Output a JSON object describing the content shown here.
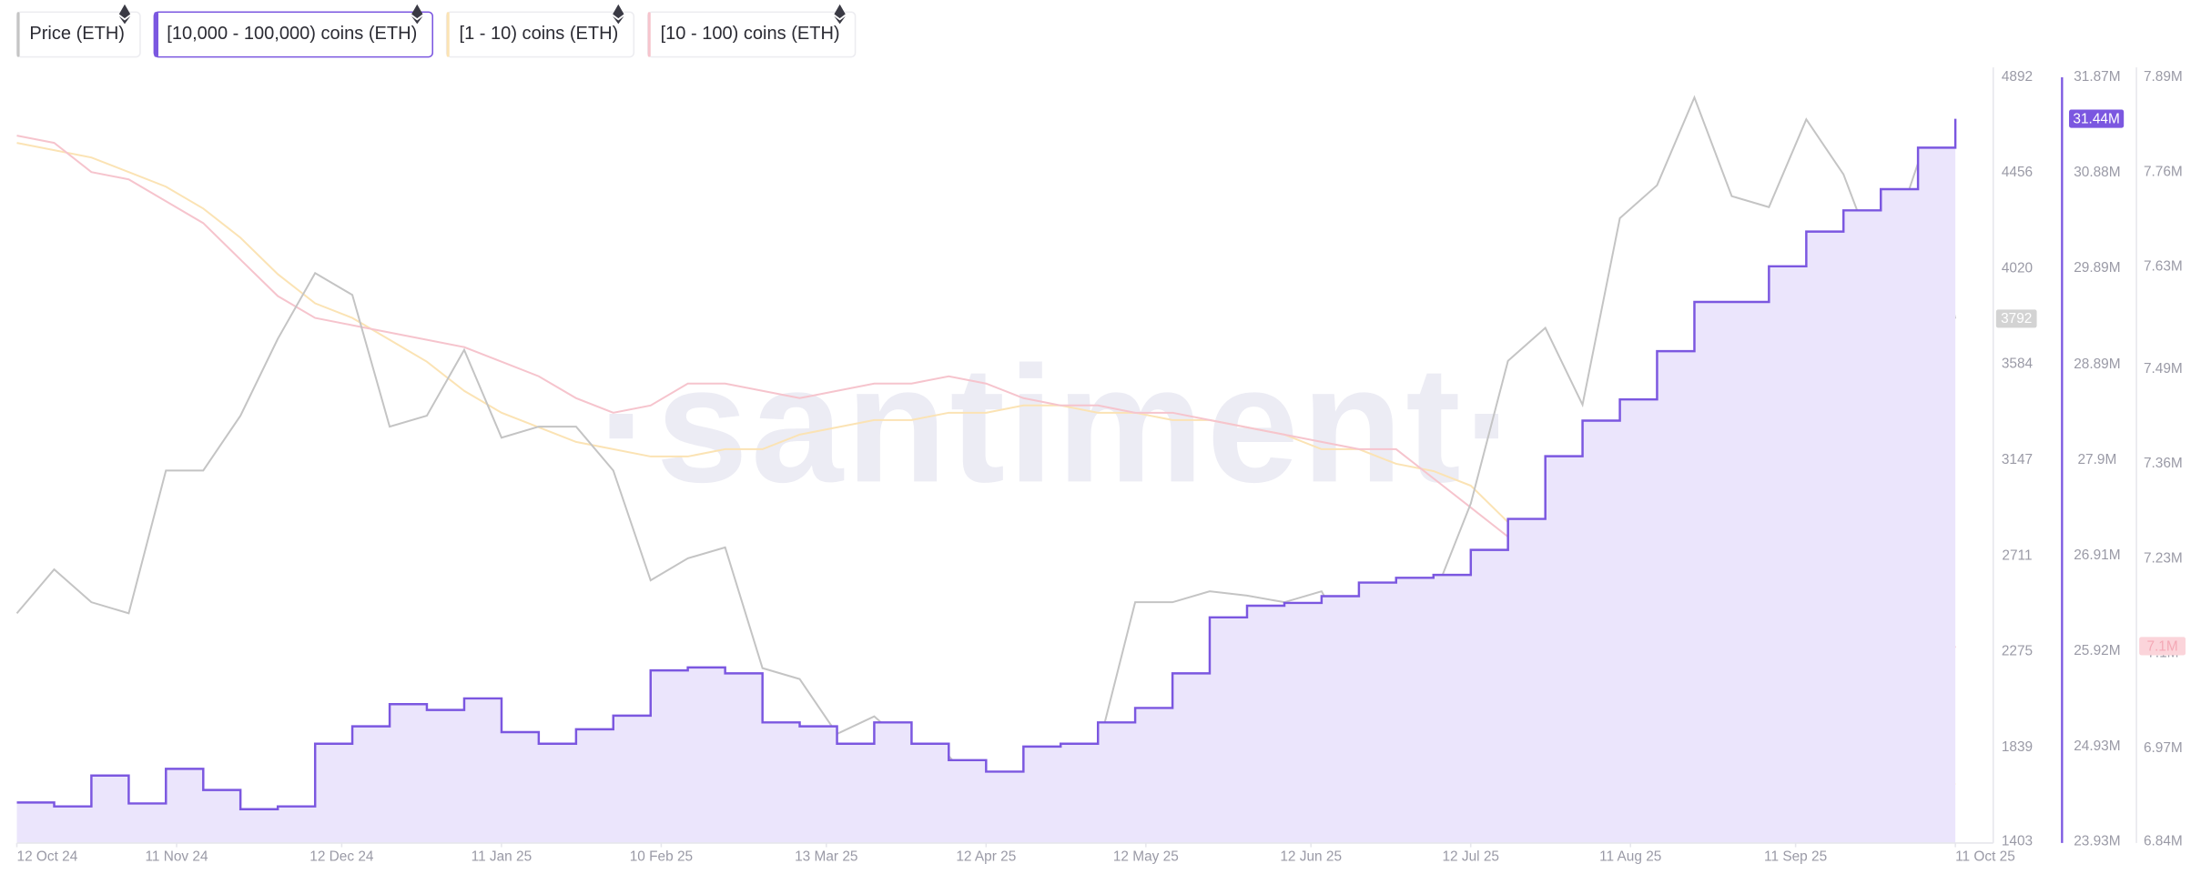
{
  "chart_data": {
    "type": "line",
    "watermark": "·santiment·",
    "x": [
      "2024-10-12",
      "2024-10-19",
      "2024-10-26",
      "2024-11-02",
      "2024-11-09",
      "2024-11-16",
      "2024-11-23",
      "2024-11-30",
      "2024-12-07",
      "2024-12-14",
      "2024-12-21",
      "2024-12-28",
      "2025-01-04",
      "2025-01-11",
      "2025-01-18",
      "2025-01-25",
      "2025-02-01",
      "2025-02-08",
      "2025-02-15",
      "2025-02-22",
      "2025-03-01",
      "2025-03-08",
      "2025-03-15",
      "2025-03-22",
      "2025-03-29",
      "2025-04-05",
      "2025-04-12",
      "2025-04-19",
      "2025-04-26",
      "2025-05-03",
      "2025-05-10",
      "2025-05-17",
      "2025-05-24",
      "2025-05-31",
      "2025-06-07",
      "2025-06-14",
      "2025-06-21",
      "2025-06-28",
      "2025-07-05",
      "2025-07-12",
      "2025-07-19",
      "2025-07-26",
      "2025-08-02",
      "2025-08-09",
      "2025-08-16",
      "2025-08-23",
      "2025-08-30",
      "2025-09-06",
      "2025-09-13",
      "2025-09-20",
      "2025-09-27",
      "2025-10-04",
      "2025-10-11"
    ],
    "xticks": [
      {
        "value": "2024-10-12",
        "label": "12 Oct 24"
      },
      {
        "value": "2024-11-11",
        "label": "11 Nov 24"
      },
      {
        "value": "2024-12-12",
        "label": "12 Dec 24"
      },
      {
        "value": "2025-01-11",
        "label": "11 Jan 25"
      },
      {
        "value": "2025-02-10",
        "label": "10 Feb 25"
      },
      {
        "value": "2025-03-13",
        "label": "13 Mar 25"
      },
      {
        "value": "2025-04-12",
        "label": "12 Apr 25"
      },
      {
        "value": "2025-05-12",
        "label": "12 May 25"
      },
      {
        "value": "2025-06-12",
        "label": "12 Jun 25"
      },
      {
        "value": "2025-07-12",
        "label": "12 Jul 25"
      },
      {
        "value": "2025-08-11",
        "label": "11 Aug 25"
      },
      {
        "value": "2025-09-11",
        "label": "11 Sep 25"
      },
      {
        "value": "2025-10-11",
        "label": "11 Oct 25"
      }
    ],
    "ylim": [
      1403,
      4892
    ],
    "yticks": [
      4892,
      4456,
      4020,
      3584,
      3147,
      2711,
      2275,
      1839,
      1403
    ],
    "y2lim": [
      23.93,
      31.87
    ],
    "y2ticks": [
      {
        "value": 31.87,
        "label": "31.87M"
      },
      {
        "value": 30.88,
        "label": "30.88M"
      },
      {
        "value": 29.89,
        "label": "29.89M"
      },
      {
        "value": 28.89,
        "label": "28.89M"
      },
      {
        "value": 27.9,
        "label": "27.9M"
      },
      {
        "value": 26.91,
        "label": "26.91M"
      },
      {
        "value": 25.92,
        "label": "25.92M"
      },
      {
        "value": 24.93,
        "label": "24.93M"
      },
      {
        "value": 23.93,
        "label": "23.93M"
      }
    ],
    "y3lim": [
      6.84,
      7.89
    ],
    "y3ticks": [
      {
        "value": 7.89,
        "label": "7.89M"
      },
      {
        "value": 7.76,
        "label": "7.76M"
      },
      {
        "value": 7.63,
        "label": "7.63M"
      },
      {
        "value": 7.49,
        "label": "7.49M"
      },
      {
        "value": 7.36,
        "label": "7.36M"
      },
      {
        "value": 7.23,
        "label": "7.23M"
      },
      {
        "value": 7.1,
        "label": "7.1M"
      },
      {
        "value": 6.97,
        "label": "6.97M"
      },
      {
        "value": 6.84,
        "label": "6.84M"
      }
    ],
    "series": [
      {
        "name": "[1 - 10) coins (ETH)",
        "color": "#fbe3b4",
        "axis": "y3",
        "style": "line",
        "values": [
          7.8,
          7.79,
          7.78,
          7.76,
          7.74,
          7.71,
          7.67,
          7.62,
          7.58,
          7.56,
          7.53,
          7.5,
          7.46,
          7.43,
          7.41,
          7.39,
          7.38,
          7.37,
          7.37,
          7.38,
          7.38,
          7.4,
          7.41,
          7.42,
          7.42,
          7.43,
          7.43,
          7.44,
          7.44,
          7.43,
          7.43,
          7.42,
          7.42,
          7.41,
          7.4,
          7.38,
          7.38,
          7.36,
          7.35,
          7.33,
          7.28,
          7.26,
          7.21,
          7.15,
          7.09,
          7.07,
          7.04,
          7.02,
          7.01,
          6.99,
          6.97,
          6.95,
          6.92
        ]
      },
      {
        "name": "[10 - 100) coins (ETH)",
        "color": "#f6c4cd",
        "axis": "y3",
        "style": "line",
        "last_value_label": "7.1M",
        "values": [
          7.81,
          7.8,
          7.76,
          7.75,
          7.72,
          7.69,
          7.64,
          7.59,
          7.56,
          7.55,
          7.54,
          7.53,
          7.52,
          7.5,
          7.48,
          7.45,
          7.43,
          7.44,
          7.47,
          7.47,
          7.46,
          7.45,
          7.46,
          7.47,
          7.47,
          7.48,
          7.47,
          7.45,
          7.44,
          7.44,
          7.43,
          7.43,
          7.42,
          7.41,
          7.4,
          7.39,
          7.38,
          7.38,
          7.34,
          7.3,
          7.26,
          7.23,
          7.19,
          7.13,
          7.08,
          7.03,
          6.99,
          6.97,
          6.94,
          6.92,
          6.91,
          7.01,
          7.11
        ]
      },
      {
        "name": "Price (ETH)",
        "color": "#c4c4c4",
        "axis": "y",
        "style": "line",
        "values": [
          2450,
          2650,
          2500,
          2450,
          3100,
          3100,
          3350,
          3700,
          4000,
          3900,
          3300,
          3350,
          3650,
          3250,
          3300,
          3300,
          3100,
          2600,
          2700,
          2750,
          2200,
          2150,
          1900,
          1980,
          1830,
          1800,
          1600,
          1600,
          1800,
          1830,
          2500,
          2500,
          2550,
          2530,
          2500,
          2550,
          2250,
          2430,
          2520,
          2950,
          3600,
          3750,
          3400,
          4250,
          4400,
          4800,
          4350,
          4300,
          4700,
          4450,
          4000,
          4500,
          3792
        ]
      },
      {
        "name": "[10,000 - 100,000) coins (ETH)",
        "color": "#7b57e0",
        "area_color": "#ebe5fc",
        "axis": "y2",
        "style": "step-area",
        "last_value_label": "31.44M",
        "values": [
          24.35,
          24.31,
          24.63,
          24.34,
          24.7,
          24.48,
          24.28,
          24.31,
          24.96,
          25.14,
          25.37,
          25.31,
          25.43,
          25.08,
          24.96,
          25.11,
          25.25,
          25.72,
          25.75,
          25.69,
          25.18,
          25.14,
          24.96,
          25.18,
          24.96,
          24.79,
          24.67,
          24.93,
          24.96,
          25.18,
          25.33,
          25.69,
          26.27,
          26.39,
          26.42,
          26.49,
          26.63,
          26.68,
          26.71,
          26.97,
          27.29,
          27.94,
          28.31,
          28.53,
          29.03,
          29.54,
          29.54,
          29.91,
          30.27,
          30.49,
          30.71,
          31.14,
          31.44
        ]
      }
    ],
    "legend_order": [
      2,
      3,
      0,
      1
    ]
  }
}
